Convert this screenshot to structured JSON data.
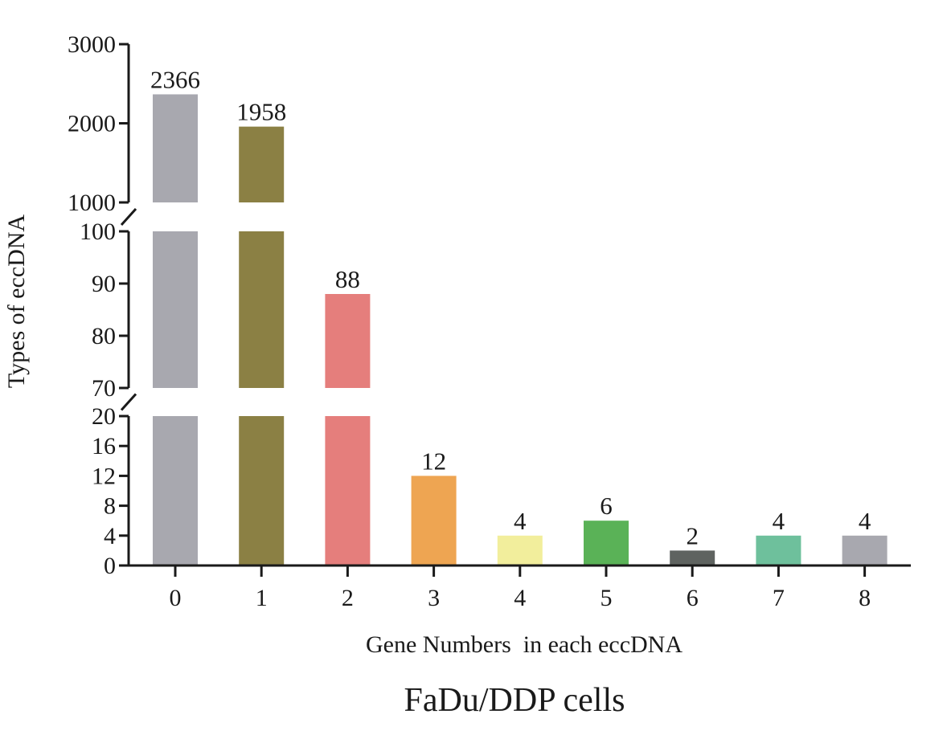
{
  "chart_data": {
    "type": "bar",
    "title": "FaDu/DDP cells",
    "xlabel": "Gene Numbers  in each eccDNA",
    "ylabel": "Types of eccDNA",
    "categories": [
      "0",
      "1",
      "2",
      "3",
      "4",
      "5",
      "6",
      "7",
      "8"
    ],
    "values": [
      2366,
      1958,
      88,
      12,
      4,
      6,
      2,
      4,
      4
    ],
    "data_labels": [
      "2366",
      "1958",
      "88",
      "12",
      "4",
      "6",
      "2",
      "4",
      "4"
    ],
    "colors": [
      "#a8a8af",
      "#8b8044",
      "#e57e7c",
      "#eea552",
      "#f2ee9c",
      "#5ab257",
      "#5f6360",
      "#6ec09c",
      "#a8a8af"
    ],
    "y_axis_segments": [
      {
        "range": [
          0,
          20
        ],
        "ticks": [
          "0",
          "4",
          "8",
          "12",
          "16",
          "20"
        ]
      },
      {
        "range": [
          70,
          100
        ],
        "ticks": [
          "70",
          "80",
          "90",
          "100"
        ]
      },
      {
        "range": [
          1000,
          3000
        ],
        "ticks": [
          "1000",
          "2000",
          "3000"
        ]
      }
    ],
    "grid": false,
    "legend": "none"
  }
}
